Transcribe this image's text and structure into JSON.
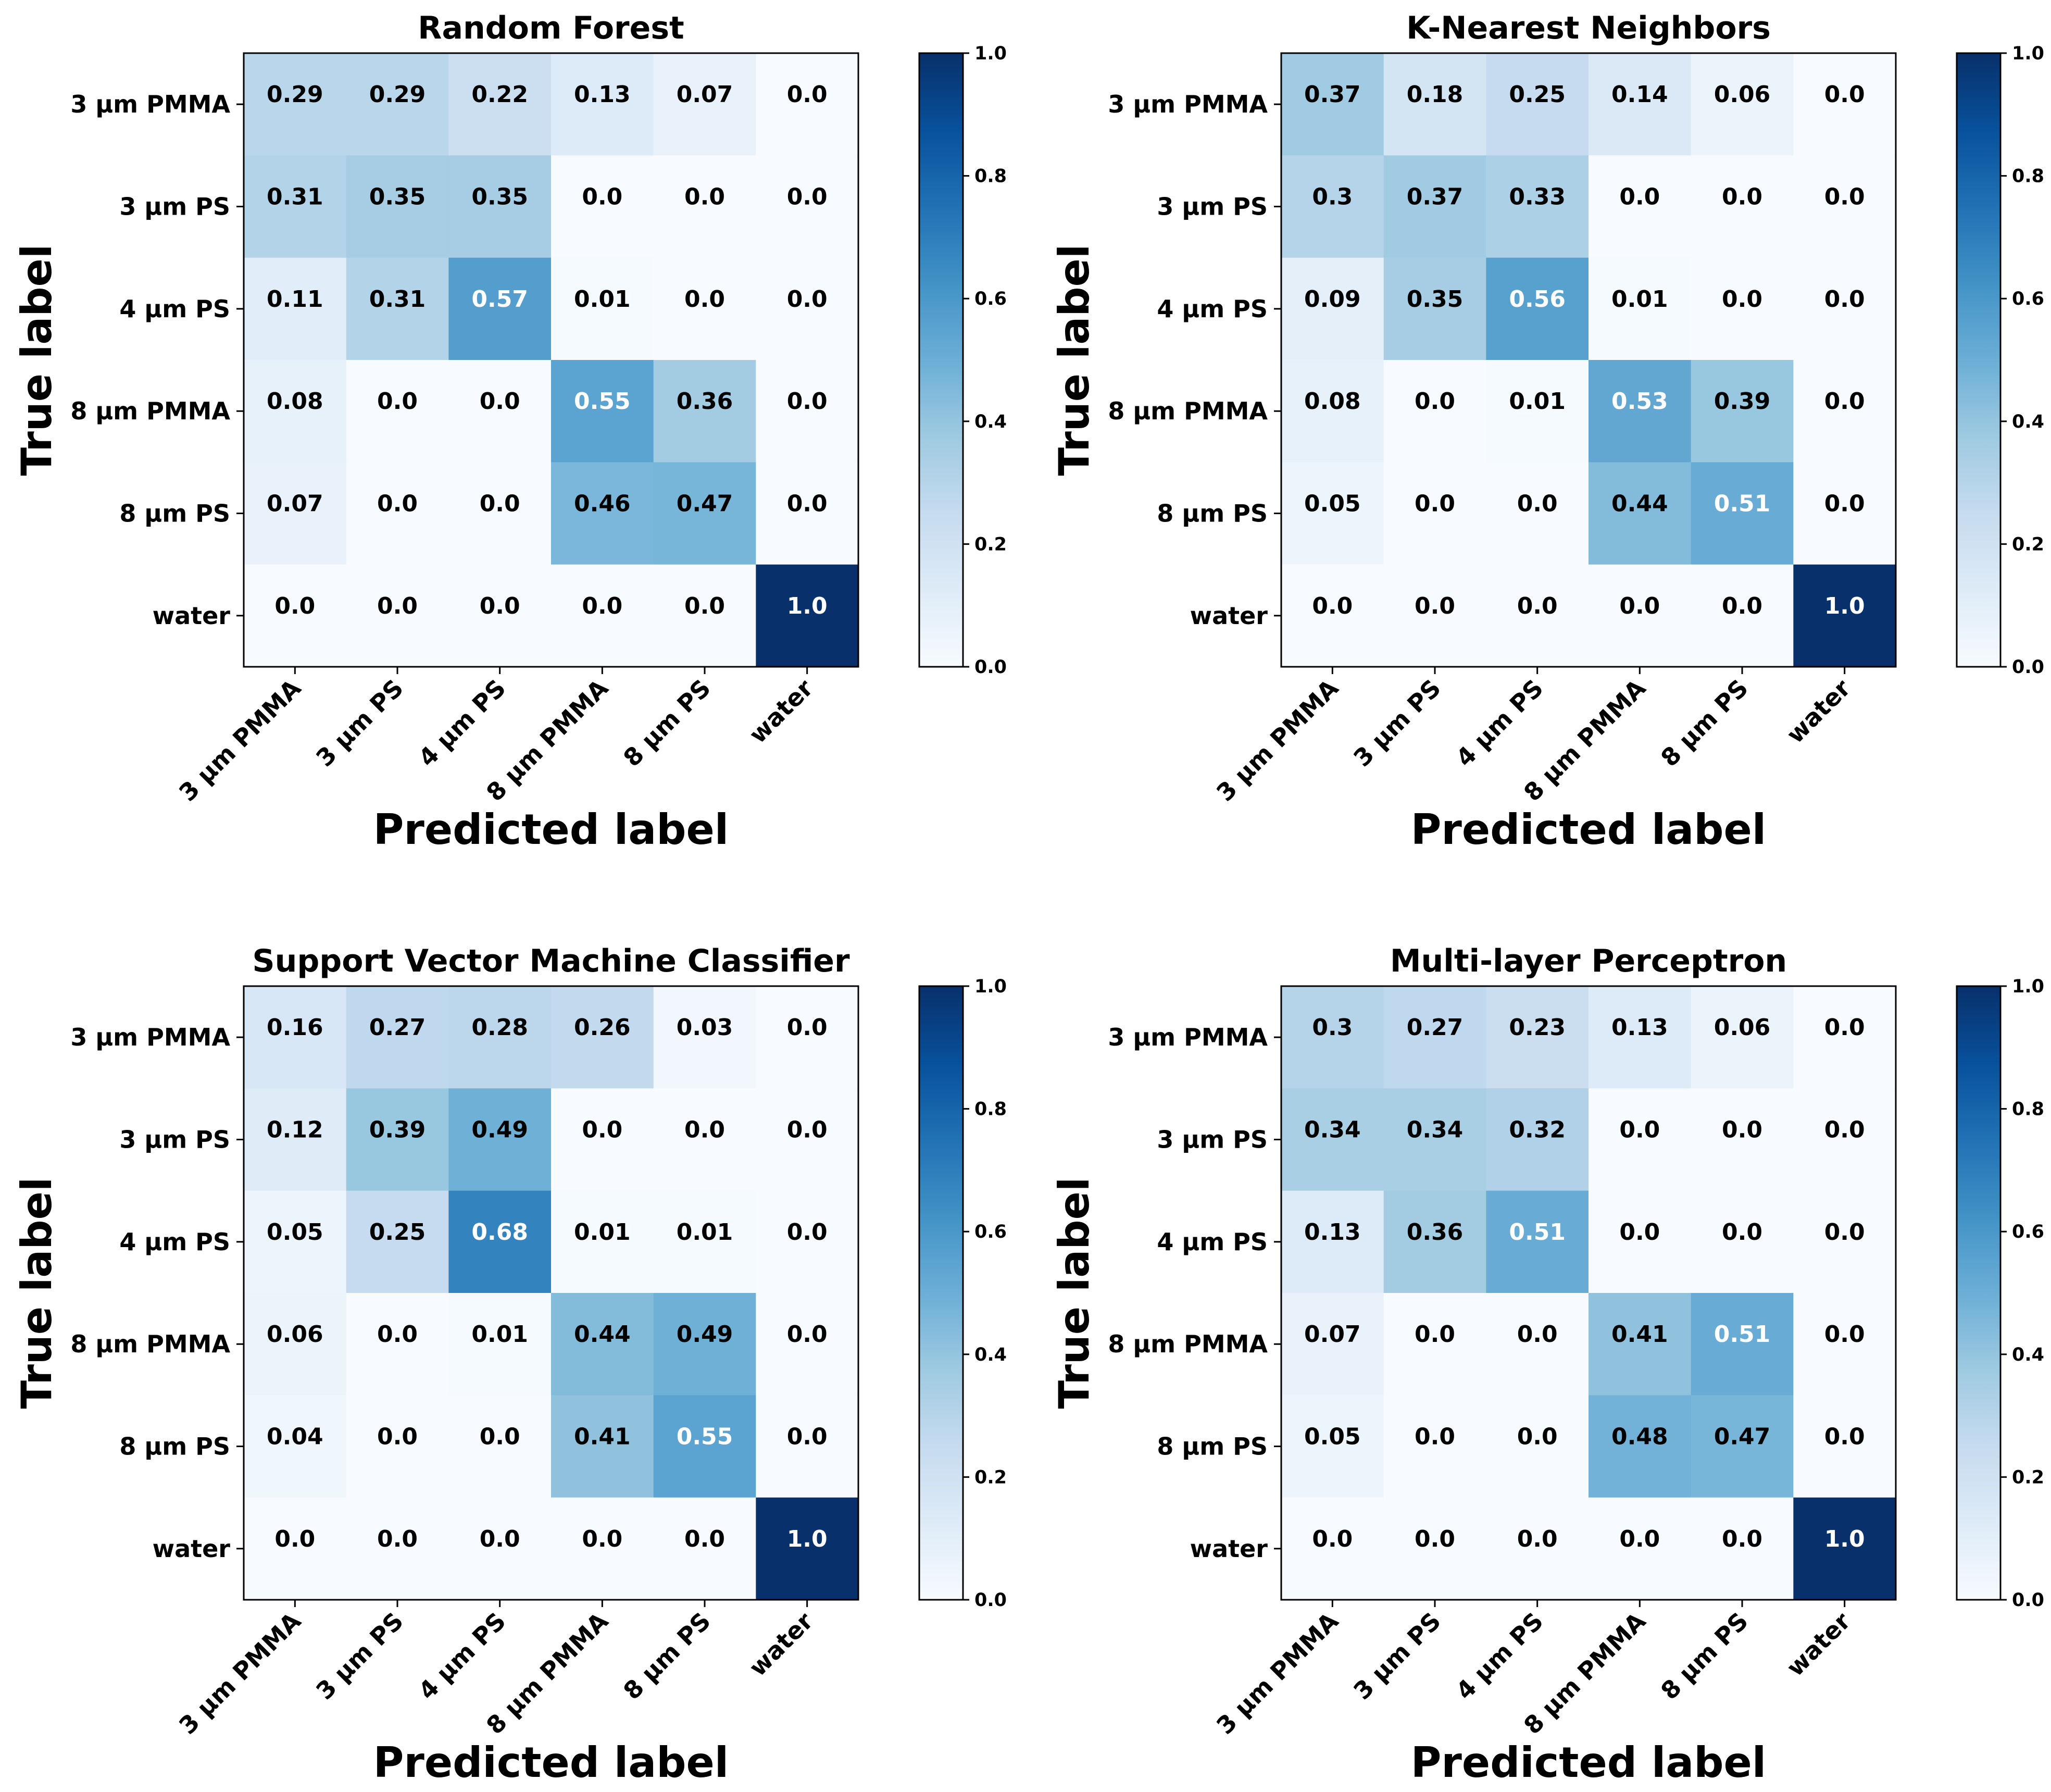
{
  "chart_data": [
    {
      "type": "heatmap",
      "title": "Random Forest",
      "xlabel": "Predicted label",
      "ylabel": "True label",
      "row_labels": [
        "3 μm PMMA",
        "3 μm PS",
        "4 μm PS",
        "8 μm PMMA",
        "8 μm PS",
        "water"
      ],
      "col_labels": [
        "3 μm PMMA",
        "3 μm PS",
        "4 μm PS",
        "8 μm PMMA",
        "8 μm PS",
        "water"
      ],
      "values": [
        [
          0.29,
          0.29,
          0.22,
          0.13,
          0.07,
          0.0
        ],
        [
          0.31,
          0.35,
          0.35,
          0.0,
          0.0,
          0.0
        ],
        [
          0.11,
          0.31,
          0.57,
          0.01,
          0.0,
          0.0
        ],
        [
          0.08,
          0.0,
          0.0,
          0.55,
          0.36,
          0.0
        ],
        [
          0.07,
          0.0,
          0.0,
          0.46,
          0.47,
          0.0
        ],
        [
          0.0,
          0.0,
          0.0,
          0.0,
          0.0,
          1.0
        ]
      ],
      "value_labels": [
        [
          "0.29",
          "0.29",
          "0.22",
          "0.13",
          "0.07",
          "0.0"
        ],
        [
          "0.31",
          "0.35",
          "0.35",
          "0.0",
          "0.0",
          "0.0"
        ],
        [
          "0.11",
          "0.31",
          "0.57",
          "0.01",
          "0.0",
          "0.0"
        ],
        [
          "0.08",
          "0.0",
          "0.0",
          "0.55",
          "0.36",
          "0.0"
        ],
        [
          "0.07",
          "0.0",
          "0.0",
          "0.46",
          "0.47",
          "0.0"
        ],
        [
          "0.0",
          "0.0",
          "0.0",
          "0.0",
          "0.0",
          "1.0"
        ]
      ],
      "colorbar": {
        "range": [
          0.0,
          1.0
        ],
        "ticks": [
          "0.0",
          "0.2",
          "0.4",
          "0.6",
          "0.8",
          "1.0"
        ]
      }
    },
    {
      "type": "heatmap",
      "title": "K-Nearest Neighbors",
      "xlabel": "Predicted label",
      "ylabel": "True label",
      "row_labels": [
        "3 μm PMMA",
        "3 μm PS",
        "4 μm PS",
        "8 μm PMMA",
        "8 μm PS",
        "water"
      ],
      "col_labels": [
        "3 μm PMMA",
        "3 μm PS",
        "4 μm PS",
        "8 μm PMMA",
        "8 μm PS",
        "water"
      ],
      "values": [
        [
          0.37,
          0.18,
          0.25,
          0.14,
          0.06,
          0.0
        ],
        [
          0.3,
          0.37,
          0.33,
          0.0,
          0.0,
          0.0
        ],
        [
          0.09,
          0.35,
          0.56,
          0.01,
          0.0,
          0.0
        ],
        [
          0.08,
          0.0,
          0.01,
          0.53,
          0.39,
          0.0
        ],
        [
          0.05,
          0.0,
          0.0,
          0.44,
          0.51,
          0.0
        ],
        [
          0.0,
          0.0,
          0.0,
          0.0,
          0.0,
          1.0
        ]
      ],
      "value_labels": [
        [
          "0.37",
          "0.18",
          "0.25",
          "0.14",
          "0.06",
          "0.0"
        ],
        [
          "0.3",
          "0.37",
          "0.33",
          "0.0",
          "0.0",
          "0.0"
        ],
        [
          "0.09",
          "0.35",
          "0.56",
          "0.01",
          "0.0",
          "0.0"
        ],
        [
          "0.08",
          "0.0",
          "0.01",
          "0.53",
          "0.39",
          "0.0"
        ],
        [
          "0.05",
          "0.0",
          "0.0",
          "0.44",
          "0.51",
          "0.0"
        ],
        [
          "0.0",
          "0.0",
          "0.0",
          "0.0",
          "0.0",
          "1.0"
        ]
      ],
      "colorbar": {
        "range": [
          0.0,
          1.0
        ],
        "ticks": [
          "0.0",
          "0.2",
          "0.4",
          "0.6",
          "0.8",
          "1.0"
        ]
      }
    },
    {
      "type": "heatmap",
      "title": "Support Vector Machine Classifier",
      "xlabel": "Predicted label",
      "ylabel": "True label",
      "row_labels": [
        "3 μm PMMA",
        "3 μm PS",
        "4 μm PS",
        "8 μm PMMA",
        "8 μm PS",
        "water"
      ],
      "col_labels": [
        "3 μm PMMA",
        "3 μm PS",
        "4 μm PS",
        "8 μm PMMA",
        "8 μm PS",
        "water"
      ],
      "values": [
        [
          0.16,
          0.27,
          0.28,
          0.26,
          0.03,
          0.0
        ],
        [
          0.12,
          0.39,
          0.49,
          0.0,
          0.0,
          0.0
        ],
        [
          0.05,
          0.25,
          0.68,
          0.01,
          0.01,
          0.0
        ],
        [
          0.06,
          0.0,
          0.01,
          0.44,
          0.49,
          0.0
        ],
        [
          0.04,
          0.0,
          0.0,
          0.41,
          0.55,
          0.0
        ],
        [
          0.0,
          0.0,
          0.0,
          0.0,
          0.0,
          1.0
        ]
      ],
      "value_labels": [
        [
          "0.16",
          "0.27",
          "0.28",
          "0.26",
          "0.03",
          "0.0"
        ],
        [
          "0.12",
          "0.39",
          "0.49",
          "0.0",
          "0.0",
          "0.0"
        ],
        [
          "0.05",
          "0.25",
          "0.68",
          "0.01",
          "0.01",
          "0.0"
        ],
        [
          "0.06",
          "0.0",
          "0.01",
          "0.44",
          "0.49",
          "0.0"
        ],
        [
          "0.04",
          "0.0",
          "0.0",
          "0.41",
          "0.55",
          "0.0"
        ],
        [
          "0.0",
          "0.0",
          "0.0",
          "0.0",
          "0.0",
          "1.0"
        ]
      ],
      "colorbar": {
        "range": [
          0.0,
          1.0
        ],
        "ticks": [
          "0.0",
          "0.2",
          "0.4",
          "0.6",
          "0.8",
          "1.0"
        ]
      }
    },
    {
      "type": "heatmap",
      "title": "Multi-layer Perceptron",
      "xlabel": "Predicted label",
      "ylabel": "True label",
      "row_labels": [
        "3 μm PMMA",
        "3 μm PS",
        "4 μm PS",
        "8 μm PMMA",
        "8 μm PS",
        "water"
      ],
      "col_labels": [
        "3 μm PMMA",
        "3 μm PS",
        "4 μm PS",
        "8 μm PMMA",
        "8 μm PS",
        "water"
      ],
      "values": [
        [
          0.3,
          0.27,
          0.23,
          0.13,
          0.06,
          0.0
        ],
        [
          0.34,
          0.34,
          0.32,
          0.0,
          0.0,
          0.0
        ],
        [
          0.13,
          0.36,
          0.51,
          0.0,
          0.0,
          0.0
        ],
        [
          0.07,
          0.0,
          0.0,
          0.41,
          0.51,
          0.0
        ],
        [
          0.05,
          0.0,
          0.0,
          0.48,
          0.47,
          0.0
        ],
        [
          0.0,
          0.0,
          0.0,
          0.0,
          0.0,
          1.0
        ]
      ],
      "value_labels": [
        [
          "0.3",
          "0.27",
          "0.23",
          "0.13",
          "0.06",
          "0.0"
        ],
        [
          "0.34",
          "0.34",
          "0.32",
          "0.0",
          "0.0",
          "0.0"
        ],
        [
          "0.13",
          "0.36",
          "0.51",
          "0.0",
          "0.0",
          "0.0"
        ],
        [
          "0.07",
          "0.0",
          "0.0",
          "0.41",
          "0.51",
          "0.0"
        ],
        [
          "0.05",
          "0.0",
          "0.0",
          "0.48",
          "0.47",
          "0.0"
        ],
        [
          "0.0",
          "0.0",
          "0.0",
          "0.0",
          "0.0",
          "1.0"
        ]
      ],
      "colorbar": {
        "range": [
          0.0,
          1.0
        ],
        "ticks": [
          "0.0",
          "0.2",
          "0.4",
          "0.6",
          "0.8",
          "1.0"
        ]
      }
    }
  ],
  "colors": {
    "colormap": "Blues",
    "text_dark": "#000000",
    "text_light": "#ffffff"
  }
}
